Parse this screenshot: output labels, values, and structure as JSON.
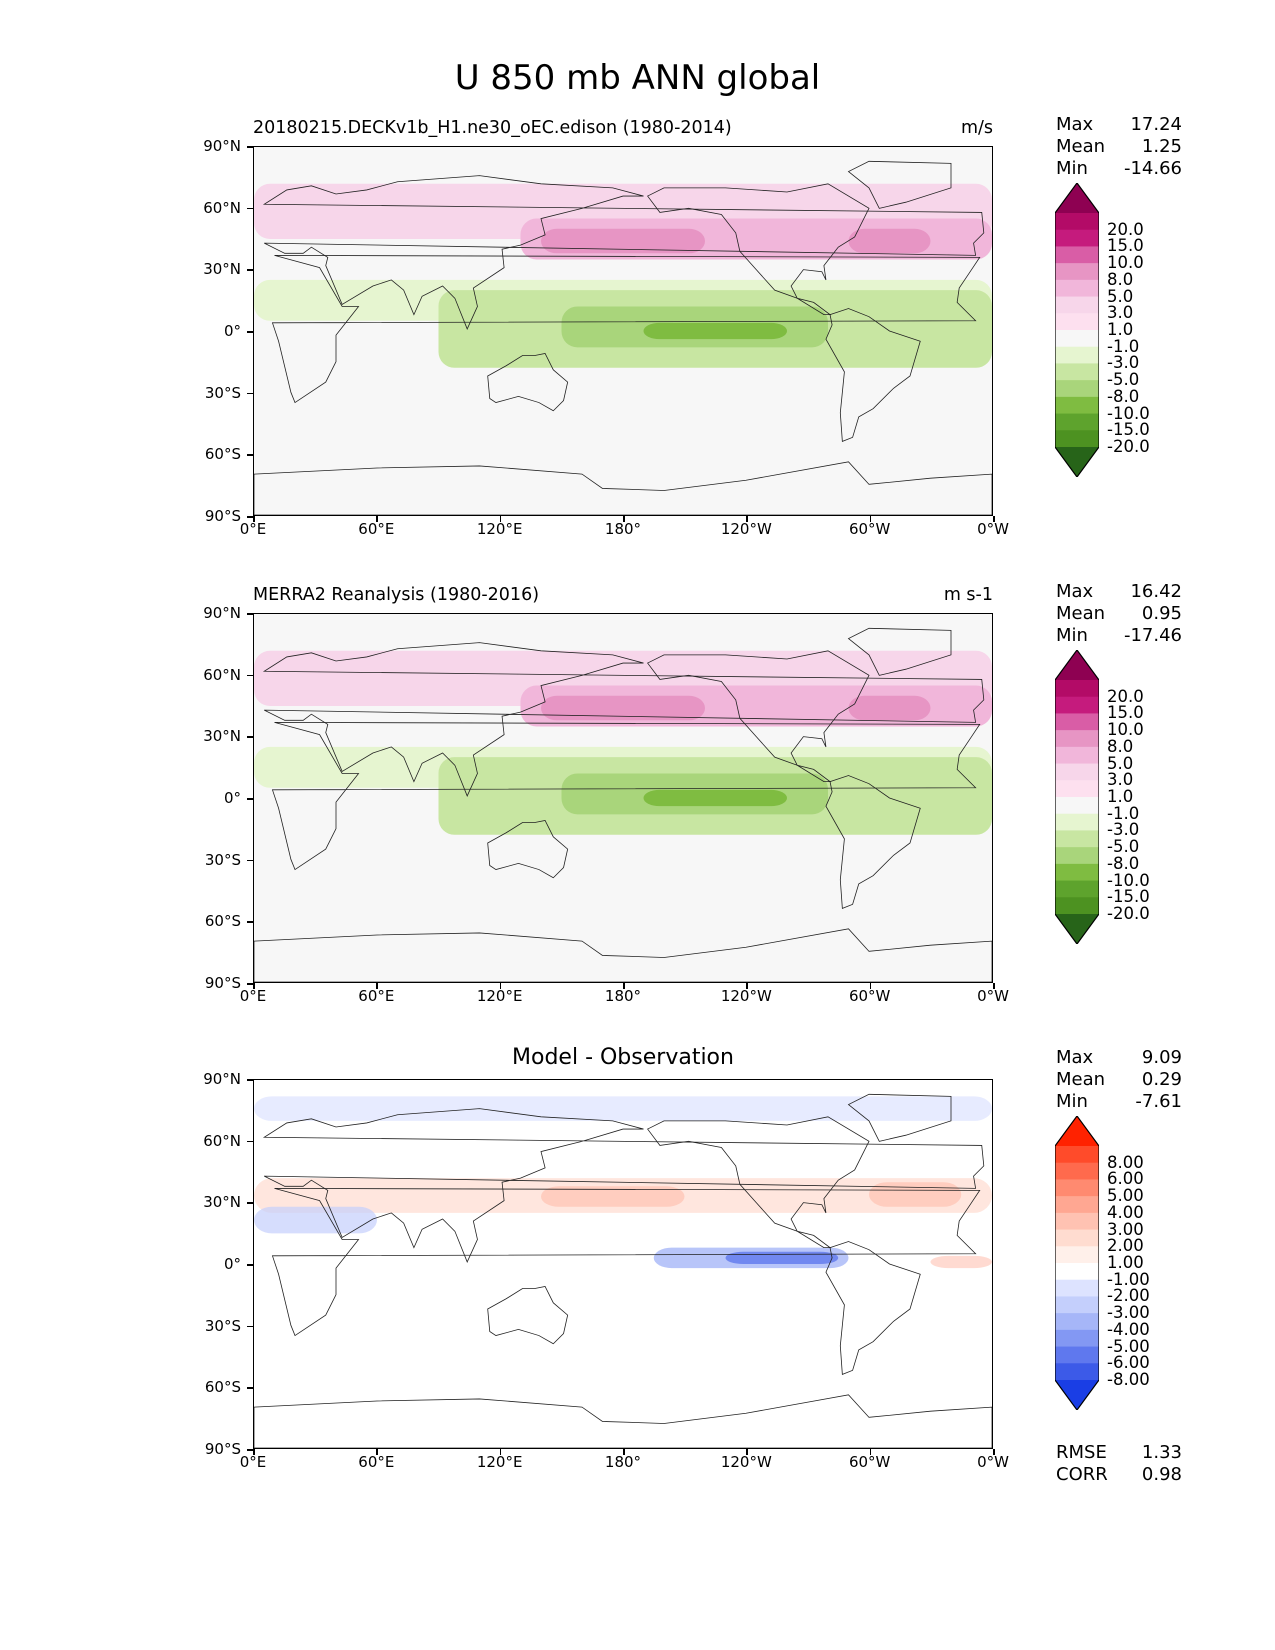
{
  "title": "U 850 mb ANN global",
  "axes": {
    "lat_ticks": [
      "90°N",
      "60°N",
      "30°N",
      "0°",
      "30°S",
      "60°S",
      "90°S"
    ],
    "lon_ticks": [
      "0°E",
      "60°E",
      "120°E",
      "180°",
      "120°W",
      "60°W",
      "0°W"
    ]
  },
  "chart_data": [
    {
      "type": "heatmap",
      "title": "20180215.DECKv1b_H1.ne30_oEC.edison (1980-2014)",
      "units": "m/s",
      "stats": {
        "max_label": "Max",
        "max": "17.24",
        "mean_label": "Mean",
        "mean": "1.25",
        "min_label": "Min",
        "min": "-14.66"
      },
      "colorbar": {
        "levels": [
          "20.0",
          "15.0",
          "10.0",
          "8.0",
          "5.0",
          "3.0",
          "1.0",
          "-1.0",
          "-3.0",
          "-5.0",
          "-8.0",
          "-10.0",
          "-15.0",
          "-20.0"
        ],
        "colors": [
          "#8e0152",
          "#b30b67",
          "#c51b7d",
          "#d95da6",
          "#e795c4",
          "#f1b6da",
          "#f7d6ea",
          "#fde0ef",
          "#f7f7f7",
          "#e6f5d0",
          "#c8e6a2",
          "#a9d57b",
          "#7fbc41",
          "#5ea32d",
          "#4d9221",
          "#276419"
        ]
      },
      "xlim": [
        0,
        360
      ],
      "ylim": [
        -90,
        90
      ]
    },
    {
      "type": "heatmap",
      "title": "MERRA2 Reanalysis (1980-2016)",
      "units": "m s-1",
      "stats": {
        "max_label": "Max",
        "max": "16.42",
        "mean_label": "Mean",
        "mean": "0.95",
        "min_label": "Min",
        "min": "-17.46"
      },
      "colorbar": {
        "levels": [
          "20.0",
          "15.0",
          "10.0",
          "8.0",
          "5.0",
          "3.0",
          "1.0",
          "-1.0",
          "-3.0",
          "-5.0",
          "-8.0",
          "-10.0",
          "-15.0",
          "-20.0"
        ],
        "colors": [
          "#8e0152",
          "#b30b67",
          "#c51b7d",
          "#d95da6",
          "#e795c4",
          "#f1b6da",
          "#f7d6ea",
          "#fde0ef",
          "#f7f7f7",
          "#e6f5d0",
          "#c8e6a2",
          "#a9d57b",
          "#7fbc41",
          "#5ea32d",
          "#4d9221",
          "#276419"
        ]
      },
      "xlim": [
        0,
        360
      ],
      "ylim": [
        -90,
        90
      ]
    },
    {
      "type": "heatmap",
      "title": "Model - Observation",
      "units": "",
      "stats": {
        "max_label": "Max",
        "max": "9.09",
        "mean_label": "Mean",
        "mean": "0.29",
        "min_label": "Min",
        "min": "-7.61"
      },
      "metrics": {
        "rmse_label": "RMSE",
        "rmse": "1.33",
        "corr_label": "CORR",
        "corr": "0.98"
      },
      "colorbar": {
        "levels": [
          "8.00",
          "6.00",
          "5.00",
          "4.00",
          "3.00",
          "2.00",
          "1.00",
          "-1.00",
          "-2.00",
          "-3.00",
          "-4.00",
          "-5.00",
          "-6.00",
          "-8.00"
        ],
        "colors": [
          "#ff2200",
          "#ff4b2a",
          "#ff6a4d",
          "#ff8a70",
          "#ffa792",
          "#ffc2b2",
          "#ffdcd0",
          "#fff0ea",
          "#ffffff",
          "#dde3ff",
          "#c4cffc",
          "#a6b6f8",
          "#8398f3",
          "#5f78ee",
          "#3c5ae8",
          "#1a3ee5"
        ]
      },
      "xlim": [
        0,
        360
      ],
      "ylim": [
        -90,
        90
      ]
    }
  ]
}
